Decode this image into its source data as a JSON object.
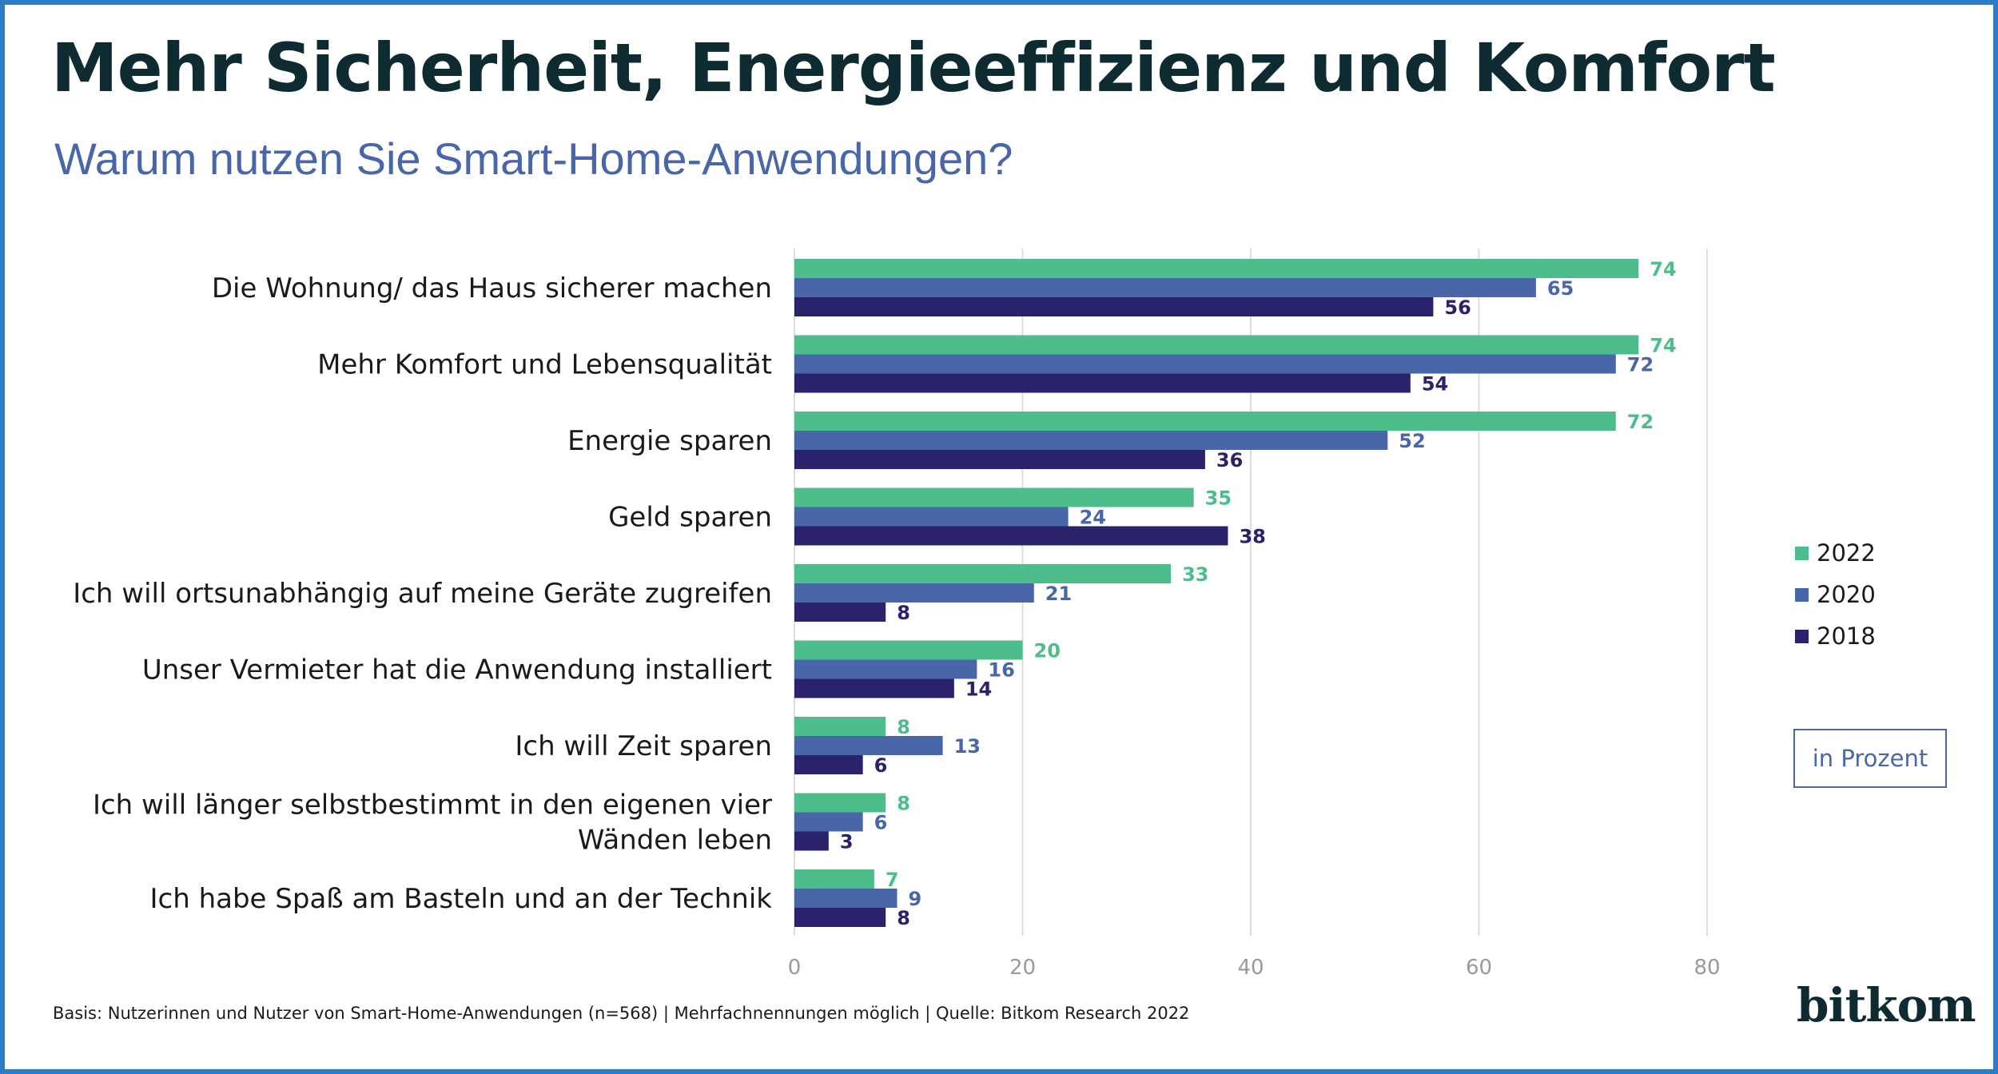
{
  "title": "Mehr Sicherheit, Energieeffizienz und Komfort",
  "subtitle": "Warum nutzen Sie Smart-Home-Anwendungen?",
  "unit_box": "in Prozent",
  "footnote": "Basis: Nutzerinnen und Nutzer von Smart-Home-Anwendungen (n=568) | Mehrfachnennungen möglich | Quelle: Bitkom Research 2022",
  "logo_text": "bitkom",
  "colors": {
    "frame": "#2e7cc4",
    "title": "#0d2b30",
    "subtitle": "#4966a8",
    "series_2022": "#4dbd8c",
    "series_2020": "#4966a8",
    "series_2018": "#2a236b"
  },
  "chart_data": {
    "type": "bar",
    "orientation": "horizontal",
    "categories": [
      [
        "Die Wohnung/ das Haus sicherer machen"
      ],
      [
        "Mehr Komfort und Lebensqualität"
      ],
      [
        "Energie sparen"
      ],
      [
        "Geld sparen"
      ],
      [
        "Ich will ortsunabhängig auf meine Geräte zugreifen"
      ],
      [
        "Unser Vermieter hat die Anwendung installiert"
      ],
      [
        "Ich will Zeit sparen"
      ],
      [
        "Ich will länger selbstbestimmt in den eigenen vier",
        "Wänden leben"
      ],
      [
        "Ich habe Spaß am Basteln und an der Technik"
      ]
    ],
    "series": [
      {
        "name": "2022",
        "color": "#4dbd8c",
        "values": [
          74,
          74,
          72,
          35,
          33,
          20,
          8,
          8,
          7
        ]
      },
      {
        "name": "2020",
        "color": "#4966a8",
        "values": [
          65,
          72,
          52,
          24,
          21,
          16,
          13,
          6,
          9
        ]
      },
      {
        "name": "2018",
        "color": "#2a236b",
        "values": [
          56,
          54,
          36,
          38,
          8,
          14,
          6,
          3,
          8
        ]
      }
    ],
    "xlim": [
      0,
      80
    ],
    "xticks": [
      0,
      20,
      40,
      60,
      80
    ],
    "grid": true,
    "legend_position": "right"
  }
}
